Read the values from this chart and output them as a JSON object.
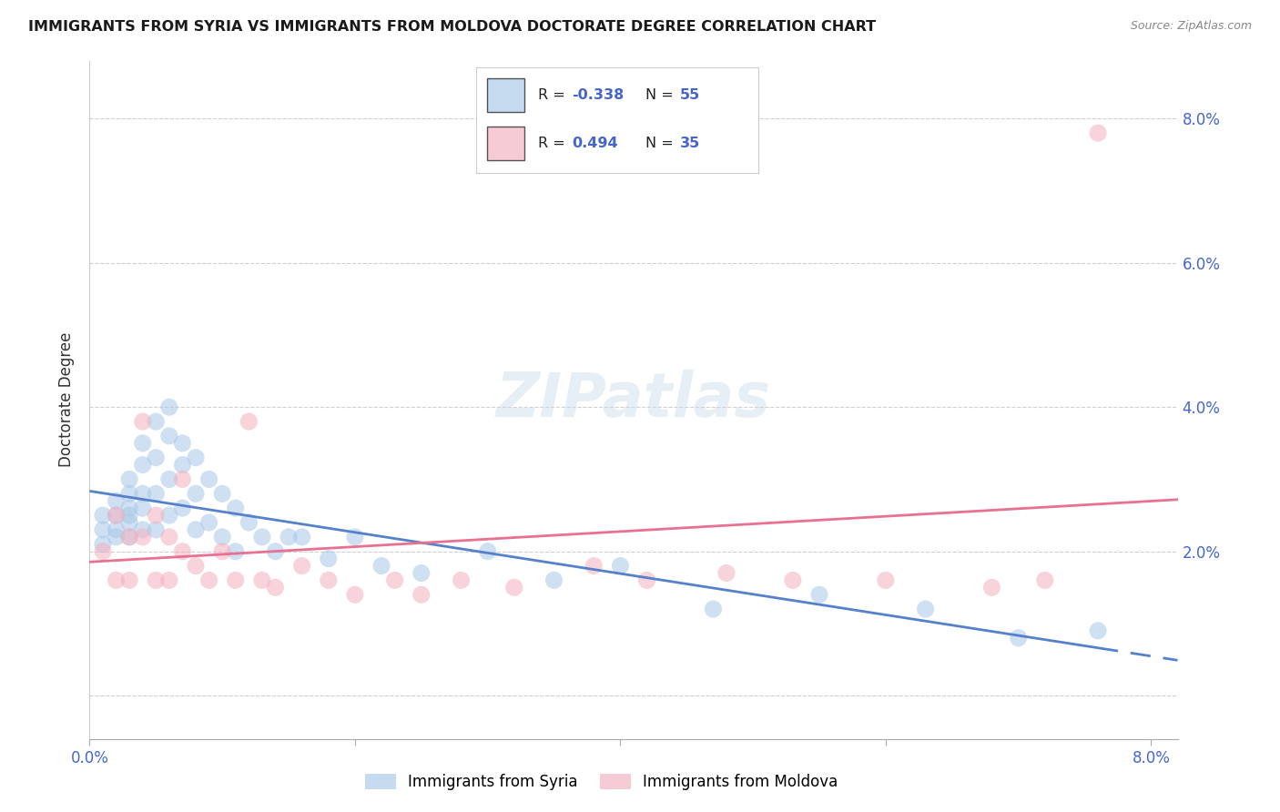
{
  "title": "IMMIGRANTS FROM SYRIA VS IMMIGRANTS FROM MOLDOVA DOCTORATE DEGREE CORRELATION CHART",
  "source": "Source: ZipAtlas.com",
  "ylabel": "Doctorate Degree",
  "xlim": [
    0.0,
    0.082
  ],
  "ylim": [
    -0.006,
    0.088
  ],
  "x_ticks": [
    0.0,
    0.02,
    0.04,
    0.06,
    0.08
  ],
  "x_tick_labels": [
    "0.0%",
    "",
    "",
    "",
    "8.0%"
  ],
  "y_ticks": [
    0.0,
    0.02,
    0.04,
    0.06,
    0.08
  ],
  "y_tick_labels_right": [
    "",
    "2.0%",
    "4.0%",
    "6.0%",
    "8.0%"
  ],
  "syria_color": "#a8c8e8",
  "moldova_color": "#f4b0c0",
  "syria_line_color": "#5580cc",
  "moldova_line_color": "#e87090",
  "tick_label_color": "#4466cc",
  "grid_color": "#d0d0d0",
  "bg_color": "#ffffff",
  "syria_R": -0.338,
  "syria_N": 55,
  "moldova_R": 0.494,
  "moldova_N": 35,
  "watermark": "ZIPatlas",
  "legend_r1_black": "R = ",
  "legend_r1_colored": "-0.338",
  "legend_n1_black": "  N = ",
  "legend_n1_colored": "55",
  "legend_r2_black": "R =  ",
  "legend_r2_colored": "0.494",
  "legend_n2_black": "  N = ",
  "legend_n2_colored": "35",
  "legend_label1": "Immigrants from Syria",
  "legend_label2": "Immigrants from Moldova",
  "syria_scatter_x": [
    0.001,
    0.001,
    0.001,
    0.002,
    0.002,
    0.002,
    0.002,
    0.003,
    0.003,
    0.003,
    0.003,
    0.003,
    0.003,
    0.004,
    0.004,
    0.004,
    0.004,
    0.004,
    0.005,
    0.005,
    0.005,
    0.005,
    0.006,
    0.006,
    0.006,
    0.006,
    0.007,
    0.007,
    0.007,
    0.008,
    0.008,
    0.008,
    0.009,
    0.009,
    0.01,
    0.01,
    0.011,
    0.011,
    0.012,
    0.013,
    0.014,
    0.015,
    0.016,
    0.018,
    0.02,
    0.022,
    0.025,
    0.03,
    0.035,
    0.04,
    0.047,
    0.055,
    0.063,
    0.07,
    0.076
  ],
  "syria_scatter_y": [
    0.025,
    0.023,
    0.021,
    0.027,
    0.025,
    0.023,
    0.022,
    0.03,
    0.028,
    0.026,
    0.025,
    0.024,
    0.022,
    0.035,
    0.032,
    0.028,
    0.026,
    0.023,
    0.038,
    0.033,
    0.028,
    0.023,
    0.04,
    0.036,
    0.03,
    0.025,
    0.035,
    0.032,
    0.026,
    0.033,
    0.028,
    0.023,
    0.03,
    0.024,
    0.028,
    0.022,
    0.026,
    0.02,
    0.024,
    0.022,
    0.02,
    0.022,
    0.022,
    0.019,
    0.022,
    0.018,
    0.017,
    0.02,
    0.016,
    0.018,
    0.012,
    0.014,
    0.012,
    0.008,
    0.009
  ],
  "moldova_scatter_x": [
    0.001,
    0.002,
    0.002,
    0.003,
    0.003,
    0.004,
    0.004,
    0.005,
    0.005,
    0.006,
    0.006,
    0.007,
    0.007,
    0.008,
    0.009,
    0.01,
    0.011,
    0.012,
    0.013,
    0.014,
    0.016,
    0.018,
    0.02,
    0.023,
    0.025,
    0.028,
    0.032,
    0.038,
    0.042,
    0.048,
    0.053,
    0.06,
    0.068,
    0.072,
    0.076
  ],
  "moldova_scatter_y": [
    0.02,
    0.025,
    0.016,
    0.022,
    0.016,
    0.038,
    0.022,
    0.025,
    0.016,
    0.022,
    0.016,
    0.03,
    0.02,
    0.018,
    0.016,
    0.02,
    0.016,
    0.038,
    0.016,
    0.015,
    0.018,
    0.016,
    0.014,
    0.016,
    0.014,
    0.016,
    0.015,
    0.018,
    0.016,
    0.017,
    0.016,
    0.016,
    0.015,
    0.016,
    0.078
  ]
}
